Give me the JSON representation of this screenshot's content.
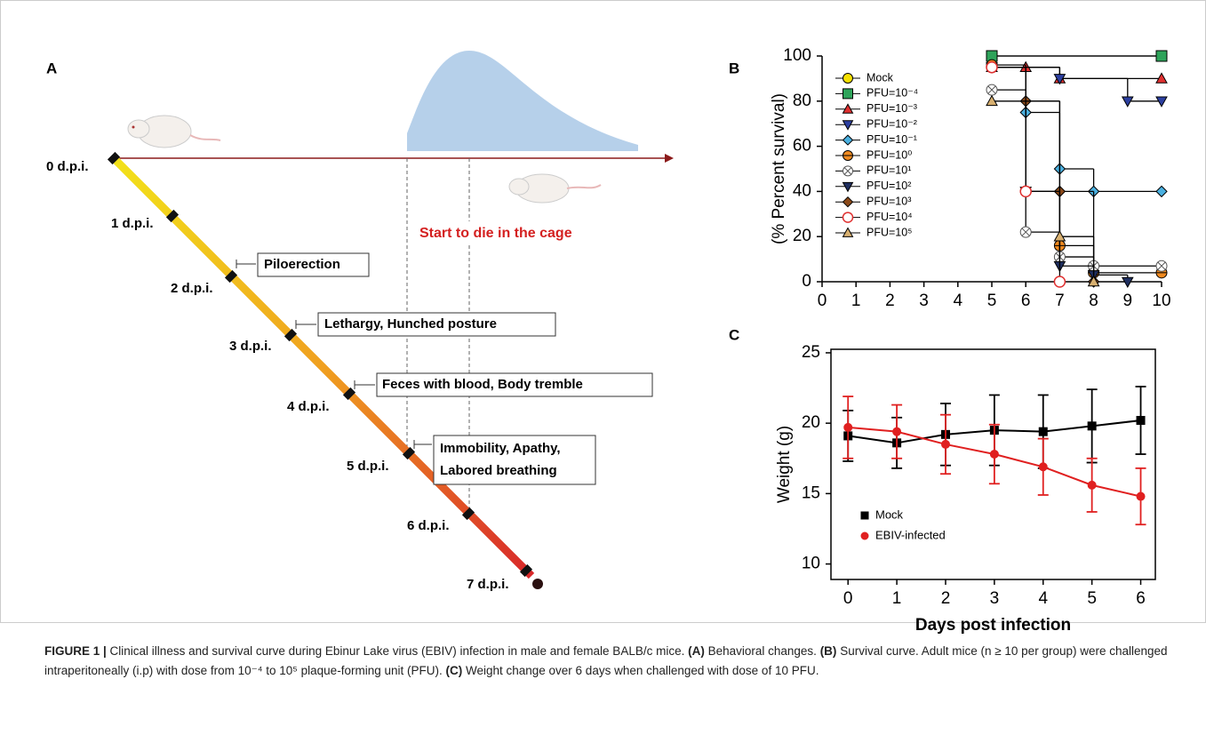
{
  "panels": [
    "A",
    "B",
    "C"
  ],
  "timeline": {
    "days": [
      "0 d.p.i.",
      "1 d.p.i.",
      "2 d.p.i.",
      "3 d.p.i.",
      "4 d.p.i.",
      "5 d.p.i.",
      "6 d.p.i.",
      "7 d.p.i."
    ],
    "events": [
      [
        "Piloerection"
      ],
      [
        "Lethargy, Hunched posture"
      ],
      [
        "Feces with blood, Body tremble"
      ],
      [
        "Immobility, Apathy,",
        "Labored breathing"
      ]
    ],
    "death": "Start to die in the cage"
  },
  "chart_data": [
    {
      "type": "step",
      "ylabel": "(% Percent survival)",
      "xlim": [
        0,
        10
      ],
      "ylim": [
        0,
        100
      ],
      "xticks": [
        0,
        1,
        2,
        3,
        4,
        5,
        6,
        7,
        8,
        9,
        10
      ],
      "yticks": [
        0,
        20,
        40,
        60,
        80,
        100
      ],
      "series": [
        {
          "name": "Mock",
          "color": "#f5e000",
          "marker": "circle",
          "x": [
            5,
            10
          ],
          "values": [
            100,
            100
          ]
        },
        {
          "name": "PFU=10⁻⁴",
          "color": "#2ea35a",
          "marker": "square",
          "x": [
            5,
            10
          ],
          "values": [
            100,
            100
          ]
        },
        {
          "name": "PFU=10⁻³",
          "color": "#e03030",
          "marker": "triangle-up",
          "x": [
            5,
            6,
            7,
            10
          ],
          "values": [
            95,
            95,
            90,
            90
          ]
        },
        {
          "name": "PFU=10⁻²",
          "color": "#2c3fa0",
          "marker": "triangle-down",
          "x": [
            5,
            7,
            9,
            10
          ],
          "values": [
            95,
            90,
            80,
            80
          ]
        },
        {
          "name": "PFU=10⁻¹",
          "color": "#4ab0e0",
          "marker": "diamond",
          "x": [
            5,
            6,
            7,
            8,
            10
          ],
          "values": [
            95,
            75,
            50,
            40,
            40
          ]
        },
        {
          "name": "PFU=10⁰",
          "color": "#f08a20",
          "marker": "circle-dot",
          "x": [
            5,
            6,
            7,
            8,
            10
          ],
          "values": [
            96,
            40,
            16,
            4,
            4
          ]
        },
        {
          "name": "PFU=10¹",
          "color": "#555555",
          "marker": "circle-cross",
          "x": [
            5,
            6,
            7,
            8,
            10
          ],
          "values": [
            85,
            22,
            11,
            7,
            7
          ]
        },
        {
          "name": "PFU=10²",
          "color": "#1f2f60",
          "marker": "triangle-down",
          "x": [
            5,
            6,
            7,
            8,
            9
          ],
          "values": [
            95,
            40,
            7,
            3,
            0
          ]
        },
        {
          "name": "PFU=10³",
          "color": "#8b4a1a",
          "marker": "diamond",
          "x": [
            5,
            6,
            7,
            8
          ],
          "values": [
            95,
            80,
            40,
            0
          ]
        },
        {
          "name": "PFU=10⁴",
          "color": "#e03030",
          "marker": "circle-open",
          "x": [
            5,
            6,
            7
          ],
          "values": [
            95,
            40,
            0
          ]
        },
        {
          "name": "PFU=10⁵",
          "color": "#d8b070",
          "marker": "triangle-up",
          "x": [
            5,
            7,
            8
          ],
          "values": [
            80,
            20,
            0
          ]
        }
      ]
    },
    {
      "type": "line",
      "xlabel": "Days post infection",
      "ylabel": "Weight (g)",
      "xlim": [
        -0.35,
        6.3
      ],
      "ylim": [
        8.9,
        25.25
      ],
      "xticks": [
        0,
        1,
        2,
        3,
        4,
        5,
        6
      ],
      "yticks": [
        10,
        15,
        20,
        25
      ],
      "series": [
        {
          "name": "Mock",
          "color": "#000000",
          "marker": "square",
          "x": [
            0,
            1,
            2,
            3,
            4,
            5,
            6
          ],
          "values": [
            19.1,
            18.6,
            19.2,
            19.5,
            19.4,
            19.8,
            20.2
          ],
          "errors": [
            1.8,
            1.8,
            2.2,
            2.5,
            2.6,
            2.6,
            2.4
          ]
        },
        {
          "name": "EBIV-infected",
          "color": "#e02020",
          "marker": "circle",
          "x": [
            0,
            1,
            2,
            3,
            4,
            5,
            6
          ],
          "values": [
            19.7,
            19.4,
            18.5,
            17.8,
            16.9,
            15.6,
            14.8
          ],
          "errors": [
            2.2,
            1.9,
            2.1,
            2.1,
            2.0,
            1.9,
            2.0
          ]
        }
      ]
    }
  ],
  "caption": [
    "FIGURE 1 |",
    " Clinical illness and survival curve during Ebinur Lake virus (EBIV) infection in male and female BALB/c mice. ",
    "(A)",
    " Behavioral changes. ",
    "(B)",
    " Survival curve. Adult mice (n ≥ 10 per group) were challenged intraperitoneally (i.p) with dose from 10⁻⁴ to 10⁵ plaque-forming unit (PFU). ",
    "(C)",
    " Weight change over 6 days when challenged with dose of 10 PFU."
  ]
}
